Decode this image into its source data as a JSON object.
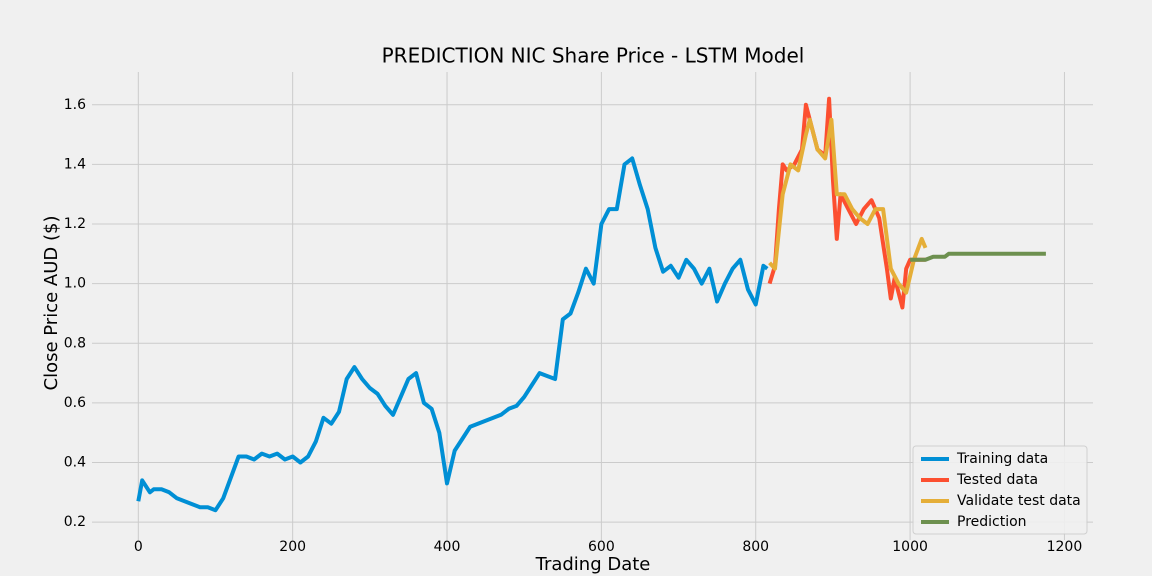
{
  "chart_data": {
    "type": "line",
    "title": "PREDICTION NIC Share Price - LSTM Model",
    "x_label": "Trading Date",
    "y_label": "Close Price AUD ($)",
    "xlim": [
      -60,
      1237
    ],
    "ylim": [
      0.14,
      1.71
    ],
    "xticks": [
      0,
      200,
      400,
      600,
      800,
      1000,
      1200
    ],
    "yticks": [
      0.2,
      0.4,
      0.6,
      0.8,
      {
        "value": 1,
        "label": "1.0"
      },
      1.2,
      1.4,
      1.6
    ],
    "grid": true,
    "legend": "lower right",
    "series": [
      {
        "name": "Training data",
        "color": "#008fd5",
        "x": [
          0,
          5,
          10,
          15,
          20,
          30,
          40,
          50,
          60,
          70,
          80,
          90,
          100,
          110,
          120,
          130,
          140,
          150,
          160,
          170,
          180,
          190,
          200,
          210,
          220,
          230,
          240,
          250,
          260,
          270,
          280,
          290,
          300,
          310,
          320,
          330,
          340,
          350,
          360,
          370,
          380,
          390,
          400,
          410,
          420,
          430,
          440,
          450,
          460,
          470,
          480,
          490,
          500,
          510,
          520,
          530,
          540,
          550,
          560,
          570,
          580,
          590,
          600,
          610,
          620,
          630,
          640,
          650,
          660,
          670,
          680,
          690,
          700,
          710,
          720,
          730,
          740,
          750,
          760,
          770,
          780,
          790,
          800,
          810,
          815
        ],
        "values": [
          0.27,
          0.34,
          0.32,
          0.3,
          0.31,
          0.31,
          0.3,
          0.28,
          0.27,
          0.26,
          0.25,
          0.25,
          0.24,
          0.28,
          0.35,
          0.42,
          0.42,
          0.41,
          0.43,
          0.42,
          0.43,
          0.41,
          0.42,
          0.4,
          0.42,
          0.47,
          0.55,
          0.53,
          0.57,
          0.68,
          0.72,
          0.68,
          0.65,
          0.63,
          0.59,
          0.56,
          0.62,
          0.68,
          0.7,
          0.6,
          0.58,
          0.5,
          0.33,
          0.44,
          0.48,
          0.52,
          0.53,
          0.54,
          0.55,
          0.56,
          0.58,
          0.59,
          0.62,
          0.66,
          0.7,
          0.69,
          0.68,
          0.88,
          0.9,
          0.97,
          1.05,
          1.0,
          1.2,
          1.25,
          1.25,
          1.4,
          1.42,
          1.33,
          1.25,
          1.12,
          1.04,
          1.06,
          1.02,
          1.08,
          1.05,
          1.0,
          1.05,
          0.94,
          1.0,
          1.05,
          1.08,
          0.98,
          0.93,
          1.06,
          1.05
        ]
      },
      {
        "name": "Tested data",
        "color": "#fc4f30",
        "x": [
          818,
          825,
          830,
          835,
          840,
          850,
          860,
          865,
          870,
          880,
          890,
          895,
          900,
          905,
          910,
          920,
          930,
          940,
          950,
          960,
          970,
          975,
          980,
          990,
          995,
          1000,
          1010,
          1020
        ],
        "values": [
          1.0,
          1.06,
          1.25,
          1.4,
          1.38,
          1.4,
          1.45,
          1.6,
          1.55,
          1.45,
          1.43,
          1.62,
          1.35,
          1.15,
          1.3,
          1.25,
          1.2,
          1.25,
          1.28,
          1.22,
          1.05,
          0.95,
          1.02,
          0.92,
          1.05,
          1.08,
          1.08,
          1.08
        ]
      },
      {
        "name": "Validate test data",
        "color": "#e5ae38",
        "x": [
          818,
          825,
          835,
          845,
          855,
          865,
          870,
          880,
          890,
          898,
          905,
          915,
          925,
          935,
          945,
          955,
          965,
          975,
          985,
          995,
          1005,
          1015,
          1020
        ],
        "values": [
          1.07,
          1.05,
          1.3,
          1.4,
          1.38,
          1.5,
          1.55,
          1.45,
          1.42,
          1.55,
          1.3,
          1.3,
          1.25,
          1.22,
          1.2,
          1.25,
          1.25,
          1.05,
          1.0,
          0.97,
          1.08,
          1.15,
          1.12
        ]
      },
      {
        "name": "Prediction",
        "color": "#6d904f",
        "x": [
          1000,
          1020,
          1030,
          1045,
          1050,
          1060,
          1100,
          1150,
          1176
        ],
        "values": [
          1.08,
          1.08,
          1.09,
          1.09,
          1.1,
          1.1,
          1.1,
          1.1,
          1.1
        ]
      }
    ]
  }
}
